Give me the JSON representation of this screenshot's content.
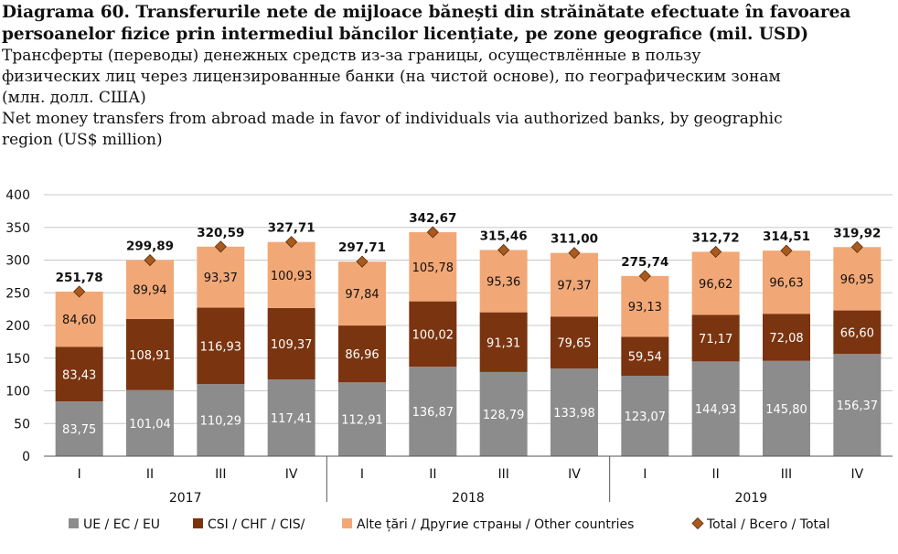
{
  "header": {
    "title_ro_line1": "Diagrama 60. Transferurile nete de mijloace bănești din străinătate efectuate în favoarea",
    "title_ro_line2": "persoanelor fizice prin intermediul băncilor licențiate, pe zone geografice (mil. USD)",
    "title_ru_line1": "Трансферты (переводы) денежных средств из-за границы, осуществлённые в пользу",
    "title_ru_line2": "физических лиц через лицензированные банки (на чистой основе), по географическим зонам",
    "title_ru_line3": "(млн. долл. США)",
    "title_en_line1": "Net money transfers from abroad made in favor of individuals via authorized banks, by geographic",
    "title_en_line2": "region (US$ million)"
  },
  "colors": {
    "eu": "#8c8c8c",
    "cis": "#7a3410",
    "other": "#f2a876",
    "total_marker": "#a85a1f",
    "grid": "#c8c8c8"
  },
  "chart_data": {
    "type": "bar",
    "stacked": true,
    "categories": [
      "I",
      "II",
      "III",
      "IV",
      "I",
      "II",
      "III",
      "IV",
      "I",
      "II",
      "III",
      "IV"
    ],
    "groups": [
      {
        "label": "2017",
        "span": 4
      },
      {
        "label": "2018",
        "span": 4
      },
      {
        "label": "2019",
        "span": 4
      }
    ],
    "ylim": [
      0,
      400
    ],
    "yticks": [
      0,
      50,
      100,
      150,
      200,
      250,
      300,
      350,
      400
    ],
    "grid": true,
    "legend_position": "bottom",
    "series": [
      {
        "name": "UE / ЕС / EU",
        "color_key": "eu",
        "values": [
          83.75,
          101.04,
          110.29,
          117.41,
          112.91,
          136.87,
          128.79,
          133.98,
          123.07,
          144.93,
          145.8,
          156.37
        ],
        "labels": [
          "83,75",
          "101,04",
          "110,29",
          "117,41",
          "112,91",
          "136,87",
          "128,79",
          "133,98",
          "123,07",
          "144,93",
          "145,80",
          "156,37"
        ]
      },
      {
        "name": "CSI / СНГ / CIS/",
        "color_key": "cis",
        "values": [
          83.43,
          108.91,
          116.93,
          109.37,
          86.96,
          100.02,
          91.31,
          79.65,
          59.54,
          71.17,
          72.08,
          66.6
        ],
        "labels": [
          "83,43",
          "108,91",
          "116,93",
          "109,37",
          "86,96",
          "100,02",
          "91,31",
          "79,65",
          "59,54",
          "71,17",
          "72,08",
          "66,60"
        ]
      },
      {
        "name": "Alte țări / Другие страны / Other countries",
        "color_key": "other",
        "values": [
          84.6,
          89.94,
          93.37,
          100.93,
          97.84,
          105.78,
          95.36,
          97.37,
          93.13,
          96.62,
          96.63,
          96.95
        ],
        "labels": [
          "84,60",
          "89,94",
          "93,37",
          "100,93",
          "97,84",
          "105,78",
          "95,36",
          "97,37",
          "93,13",
          "96,62",
          "96,63",
          "96,95"
        ]
      }
    ],
    "total": {
      "name": "Total / Всего / Total",
      "values": [
        251.78,
        299.89,
        320.59,
        327.71,
        297.71,
        342.67,
        315.46,
        311.0,
        275.74,
        312.72,
        314.51,
        319.92
      ],
      "labels": [
        "251,78",
        "299,89",
        "320,59",
        "327,71",
        "297,71",
        "342,67",
        "315,46",
        "311,00",
        "275,74",
        "312,72",
        "314,51",
        "319,92"
      ]
    }
  }
}
